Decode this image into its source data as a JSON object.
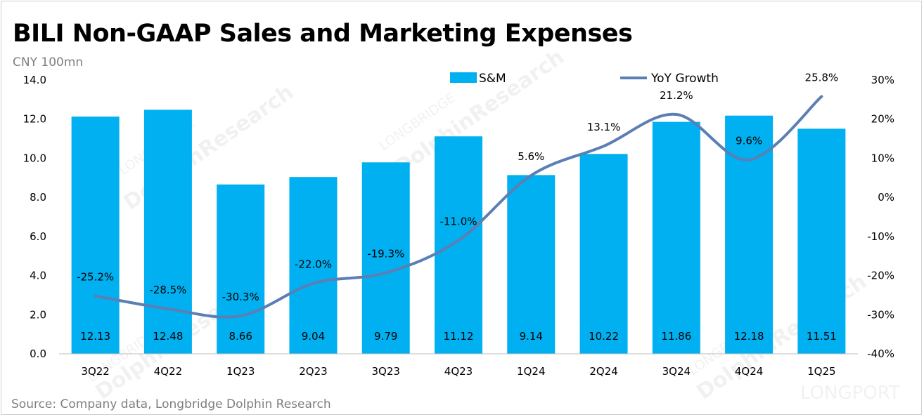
{
  "title": "BILI Non-GAAP Sales and Marketing Expenses",
  "unit": "CNY 100mn",
  "source": "Source: Company data, Longbridge Dolphin Research",
  "watermarks": [
    "LONGBRIDGE",
    "DolphinResearch",
    "LONGPORT"
  ],
  "colors": {
    "bar": "#00b0f0",
    "line": "#5b7fb5"
  },
  "chart_data": {
    "type": "bar",
    "categories": [
      "3Q22",
      "4Q22",
      "1Q23",
      "2Q23",
      "3Q23",
      "4Q23",
      "1Q24",
      "2Q24",
      "3Q24",
      "4Q24",
      "1Q25"
    ],
    "series": [
      {
        "name": "S&M",
        "type": "bar",
        "axis": "left",
        "values": [
          12.13,
          12.48,
          8.66,
          9.04,
          9.79,
          11.12,
          9.14,
          10.22,
          11.86,
          12.18,
          11.51
        ],
        "labels": [
          "12.13",
          "12.48",
          "8.66",
          "9.04",
          "9.79",
          "11.12",
          "9.14",
          "10.22",
          "11.86",
          "12.18",
          "11.51"
        ]
      },
      {
        "name": "YoY Growth",
        "type": "line",
        "axis": "right",
        "values": [
          -25.2,
          -28.5,
          -30.3,
          -22.0,
          -19.3,
          -11.0,
          5.6,
          13.1,
          21.2,
          9.6,
          25.8
        ],
        "labels": [
          "-25.2%",
          "-28.5%",
          "-30.3%",
          "-22.0%",
          "-19.3%",
          "-11.0%",
          "5.6%",
          "13.1%",
          "21.2%",
          "9.6%",
          "25.8%"
        ]
      }
    ],
    "y_left": {
      "ylim": [
        0,
        14
      ],
      "ticks": [
        "0.0",
        "2.0",
        "4.0",
        "6.0",
        "8.0",
        "10.0",
        "12.0",
        "14.0"
      ]
    },
    "y_right": {
      "ylim": [
        -40,
        30
      ],
      "ticks": [
        "-40%",
        "-30%",
        "-20%",
        "-10%",
        "0%",
        "10%",
        "20%",
        "30%"
      ]
    },
    "legend": "top",
    "grid": false
  }
}
